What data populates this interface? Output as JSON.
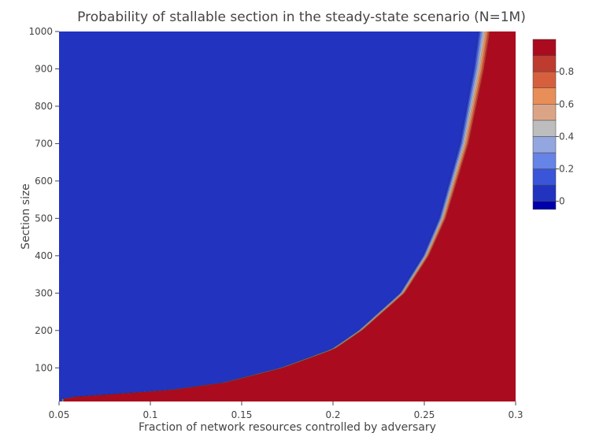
{
  "chart_data": {
    "type": "contour",
    "title": "Probability of stallable section in the steady-state scenario (N=1M)",
    "xlabel": "Fraction of network resources controlled by adversary",
    "ylabel": "Section size",
    "xlim": [
      0.05,
      0.3
    ],
    "ylim": [
      10,
      1000
    ],
    "x_ticks": [
      0.05,
      0.1,
      0.15,
      0.2,
      0.25,
      0.3
    ],
    "x_tick_labels": [
      "0.05",
      "0.1",
      "0.15",
      "0.2",
      "0.25",
      "0.3"
    ],
    "y_ticks": [
      100,
      200,
      300,
      400,
      500,
      600,
      700,
      800,
      900,
      1000
    ],
    "y_tick_labels": [
      "100",
      "200",
      "300",
      "400",
      "500",
      "600",
      "700",
      "800",
      "900",
      "1000"
    ],
    "grid": false,
    "colorbar": {
      "levels": [
        -0.05,
        0,
        0.1,
        0.2,
        0.3,
        0.4,
        0.5,
        0.6,
        0.7,
        0.8,
        0.9,
        1.0
      ],
      "colors": [
        "#0000aa",
        "#2233c0",
        "#3a55d8",
        "#6683e6",
        "#93a6df",
        "#bdbdbd",
        "#dca487",
        "#e88e58",
        "#d6603d",
        "#be3b30",
        "#ab0b1f"
      ],
      "tick_values": [
        0,
        0.2,
        0.4,
        0.6,
        0.8
      ],
      "tick_labels": [
        "0",
        "0.2",
        "0.4",
        "0.6",
        "0.8"
      ]
    },
    "transition_boundary": [
      {
        "section_size": 20,
        "adversary_fraction": 0.052
      },
      {
        "section_size": 40,
        "adversary_fraction": 0.11
      },
      {
        "section_size": 60,
        "adversary_fraction": 0.14
      },
      {
        "section_size": 100,
        "adversary_fraction": 0.172
      },
      {
        "section_size": 150,
        "adversary_fraction": 0.2
      },
      {
        "section_size": 200,
        "adversary_fraction": 0.215
      },
      {
        "section_size": 300,
        "adversary_fraction": 0.238
      },
      {
        "section_size": 400,
        "adversary_fraction": 0.251
      },
      {
        "section_size": 500,
        "adversary_fraction": 0.26
      },
      {
        "section_size": 600,
        "adversary_fraction": 0.266
      },
      {
        "section_size": 700,
        "adversary_fraction": 0.272
      },
      {
        "section_size": 800,
        "adversary_fraction": 0.276
      },
      {
        "section_size": 900,
        "adversary_fraction": 0.28
      },
      {
        "section_size": 1000,
        "adversary_fraction": 0.283
      }
    ]
  }
}
